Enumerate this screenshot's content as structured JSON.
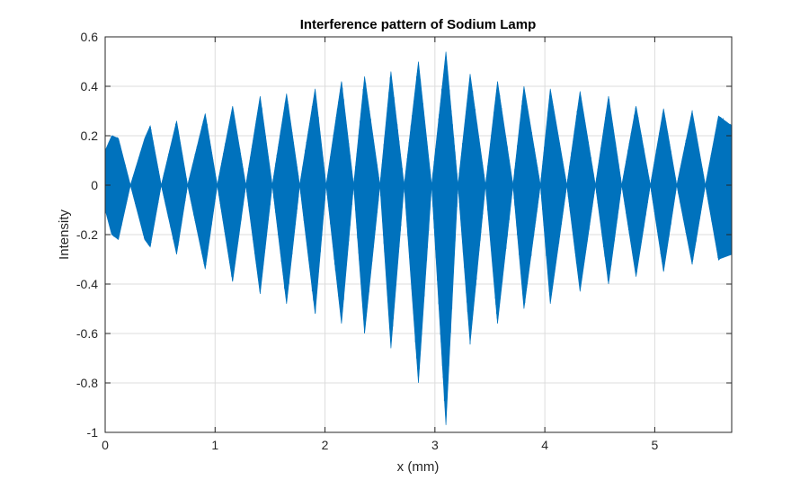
{
  "chart_data": {
    "type": "line",
    "title": "Interference pattern of Sodium Lamp",
    "xlabel": "x (mm)",
    "ylabel": "Intensity",
    "xlim": [
      0,
      5.7
    ],
    "ylim": [
      -1,
      0.6
    ],
    "xticks": [
      0,
      1,
      2,
      3,
      4,
      5
    ],
    "xtick_labels": [
      "0",
      "1",
      "2",
      "3",
      "4",
      "5"
    ],
    "yticks": [
      0.6,
      0.4,
      0.2,
      0,
      -0.2,
      -0.4,
      -0.6,
      -0.8,
      -1
    ],
    "ytick_labels": [
      "0.6",
      "0.4",
      "0.2",
      "0",
      "-0.2",
      "-0.4",
      "-0.6",
      "-0.8",
      "-1"
    ],
    "grid": true,
    "line_color": "#0072BD",
    "series": [
      {
        "envelope": {
          "x": [
            0.0,
            0.06,
            0.12,
            0.23,
            0.36,
            0.41,
            0.51,
            0.65,
            0.75,
            0.91,
            1.02,
            1.16,
            1.28,
            1.41,
            1.52,
            1.65,
            1.77,
            1.91,
            2.01,
            2.15,
            2.26,
            2.36,
            2.5,
            2.6,
            2.72,
            2.85,
            2.97,
            3.1,
            3.21,
            3.32,
            3.46,
            3.57,
            3.71,
            3.81,
            3.96,
            4.05,
            4.2,
            4.32,
            4.46,
            4.58,
            4.7,
            4.83,
            4.96,
            5.08,
            5.2,
            5.34,
            5.46,
            5.58,
            5.7
          ],
          "upper": [
            0.14,
            0.2,
            0.19,
            0.0,
            0.19,
            0.24,
            0.0,
            0.26,
            0.0,
            0.29,
            0.0,
            0.32,
            0.0,
            0.36,
            0.0,
            0.37,
            0.0,
            0.39,
            0.0,
            0.42,
            0.0,
            0.44,
            0.0,
            0.46,
            0.0,
            0.5,
            0.0,
            0.54,
            0.0,
            0.45,
            0.0,
            0.42,
            0.0,
            0.4,
            0.0,
            0.39,
            0.0,
            0.38,
            0.0,
            0.36,
            0.0,
            0.32,
            0.0,
            0.31,
            0.0,
            0.3,
            0.0,
            0.28,
            0.24
          ],
          "lower": [
            -0.1,
            -0.2,
            -0.22,
            0.0,
            -0.22,
            -0.25,
            0.0,
            -0.28,
            0.0,
            -0.34,
            0.0,
            -0.39,
            0.0,
            -0.44,
            0.0,
            -0.48,
            0.0,
            -0.52,
            0.0,
            -0.56,
            0.0,
            -0.6,
            0.0,
            -0.66,
            0.0,
            -0.8,
            0.0,
            -0.97,
            0.0,
            -0.64,
            0.0,
            -0.56,
            0.0,
            -0.5,
            0.0,
            -0.48,
            0.0,
            -0.43,
            0.0,
            -0.4,
            0.0,
            -0.37,
            0.0,
            -0.35,
            0.0,
            -0.32,
            0.0,
            -0.3,
            -0.28
          ]
        }
      }
    ]
  }
}
